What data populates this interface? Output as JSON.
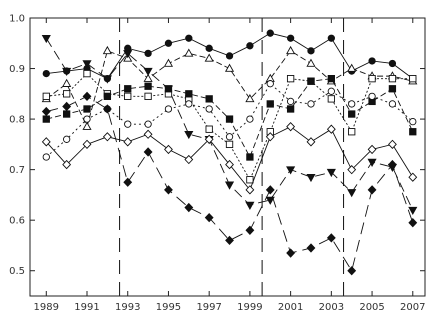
{
  "chart_data": {
    "type": "line",
    "title": "",
    "xlabel": "",
    "ylabel": "",
    "xlim": [
      1988.2,
      2007.6
    ],
    "ylim": [
      0.45,
      1.0
    ],
    "grid": false,
    "x_ticks": [
      1989,
      1991,
      1993,
      1995,
      1997,
      1999,
      2001,
      2003,
      2005,
      2007
    ],
    "x_tick_labels": [
      "1989",
      "1991",
      "1993",
      "1995",
      "1997",
      "1999",
      "2001",
      "2003",
      "2005",
      "2007"
    ],
    "y_ticks": [
      0.5,
      0.6,
      0.7,
      0.8,
      0.9,
      1.0
    ],
    "y_tick_labels": [
      "0.5",
      "0.6",
      "0.7",
      "0.8",
      "0.9",
      "1.0"
    ],
    "vertical_lines": [
      1992.6,
      1999.6,
      2003.6
    ],
    "colors": {
      "ink": "#111111",
      "axis": "#222222"
    },
    "series": [
      {
        "marker": "circle-filled",
        "dash": "",
        "x": [
          1989,
          1990,
          1991,
          1992,
          1993,
          1994,
          1995,
          1996,
          1997,
          1998,
          1999,
          2000,
          2001,
          2002,
          2003,
          2004,
          2005,
          2006,
          2007
        ],
        "y": [
          0.89,
          0.895,
          0.9,
          0.88,
          0.94,
          0.93,
          0.95,
          0.96,
          0.94,
          0.925,
          0.945,
          0.97,
          0.96,
          0.935,
          0.96,
          0.895,
          0.915,
          0.91,
          0.88
        ]
      },
      {
        "marker": "triangle-open",
        "dash": "6 3",
        "x": [
          1989,
          1990,
          1991,
          1992,
          1993,
          1994,
          1995,
          1996,
          1997,
          1998,
          1999,
          2000,
          2001,
          2002,
          2003,
          2004,
          2005,
          2006,
          2007
        ],
        "y": [
          0.84,
          0.87,
          0.785,
          0.935,
          0.92,
          0.88,
          0.91,
          0.93,
          0.92,
          0.9,
          0.84,
          0.88,
          0.935,
          0.91,
          0.875,
          0.9,
          0.885,
          0.885,
          0.875
        ]
      },
      {
        "marker": "triangle-down-filled",
        "dash": "10 5",
        "x": [
          1989,
          1990,
          1991,
          1992,
          1993,
          1994,
          1995,
          1996,
          1997,
          1998,
          1999,
          2000,
          2001,
          2002,
          2003,
          2004,
          2005,
          2006,
          2007
        ],
        "y": [
          0.96,
          0.895,
          0.91,
          0.88,
          0.93,
          0.895,
          0.86,
          0.77,
          0.76,
          0.67,
          0.63,
          0.64,
          0.7,
          0.685,
          0.695,
          0.655,
          0.715,
          0.705,
          0.62
        ]
      },
      {
        "marker": "square-open",
        "dash": "2 2",
        "x": [
          1989,
          1990,
          1991,
          1992,
          1993,
          1994,
          1995,
          1996,
          1997,
          1998,
          1999,
          2000,
          2001,
          2002,
          2003,
          2004,
          2005,
          2006,
          2007
        ],
        "y": [
          0.845,
          0.85,
          0.89,
          0.85,
          0.845,
          0.845,
          0.85,
          0.84,
          0.78,
          0.75,
          0.68,
          0.775,
          0.88,
          0.875,
          0.84,
          0.775,
          0.88,
          0.88,
          0.88
        ]
      },
      {
        "marker": "square-filled",
        "dash": "6 3",
        "x": [
          1989,
          1990,
          1991,
          1992,
          1993,
          1994,
          1995,
          1996,
          1997,
          1998,
          1999,
          2000,
          2001,
          2002,
          2003,
          2004,
          2005,
          2006,
          2007
        ],
        "y": [
          0.8,
          0.81,
          0.82,
          0.845,
          0.86,
          0.865,
          0.86,
          0.85,
          0.84,
          0.8,
          0.725,
          0.83,
          0.82,
          0.875,
          0.88,
          0.81,
          0.835,
          0.86,
          0.775
        ]
      },
      {
        "marker": "circle-open",
        "dash": "2 3",
        "x": [
          1989,
          1990,
          1991,
          1992,
          1993,
          1994,
          1995,
          1996,
          1997,
          1998,
          1999,
          2000,
          2001,
          2002,
          2003,
          2004,
          2005,
          2006,
          2007
        ],
        "y": [
          0.725,
          0.76,
          0.8,
          0.82,
          0.79,
          0.79,
          0.82,
          0.83,
          0.82,
          0.765,
          0.8,
          0.87,
          0.835,
          0.83,
          0.855,
          0.83,
          0.845,
          0.83,
          0.795
        ]
      },
      {
        "marker": "diamond-open",
        "dash": "",
        "x": [
          1989,
          1990,
          1991,
          1992,
          1993,
          1994,
          1995,
          1996,
          1997,
          1998,
          1999,
          2000,
          2001,
          2002,
          2003,
          2004,
          2005,
          2006,
          2007
        ],
        "y": [
          0.755,
          0.71,
          0.75,
          0.765,
          0.755,
          0.77,
          0.74,
          0.72,
          0.76,
          0.71,
          0.66,
          0.765,
          0.785,
          0.755,
          0.78,
          0.7,
          0.74,
          0.75,
          0.685
        ]
      },
      {
        "marker": "diamond-filled",
        "dash": "12 6",
        "x": [
          1989,
          1990,
          1991,
          1992,
          1993,
          1994,
          1995,
          1996,
          1997,
          1998,
          1999,
          2000,
          2001,
          2002,
          2003,
          2004,
          2005,
          2006,
          2007
        ],
        "y": [
          0.815,
          0.825,
          0.845,
          0.82,
          0.675,
          0.735,
          0.66,
          0.625,
          0.605,
          0.56,
          0.58,
          0.66,
          0.535,
          0.545,
          0.565,
          0.5,
          0.66,
          0.71,
          0.595
        ]
      }
    ]
  }
}
